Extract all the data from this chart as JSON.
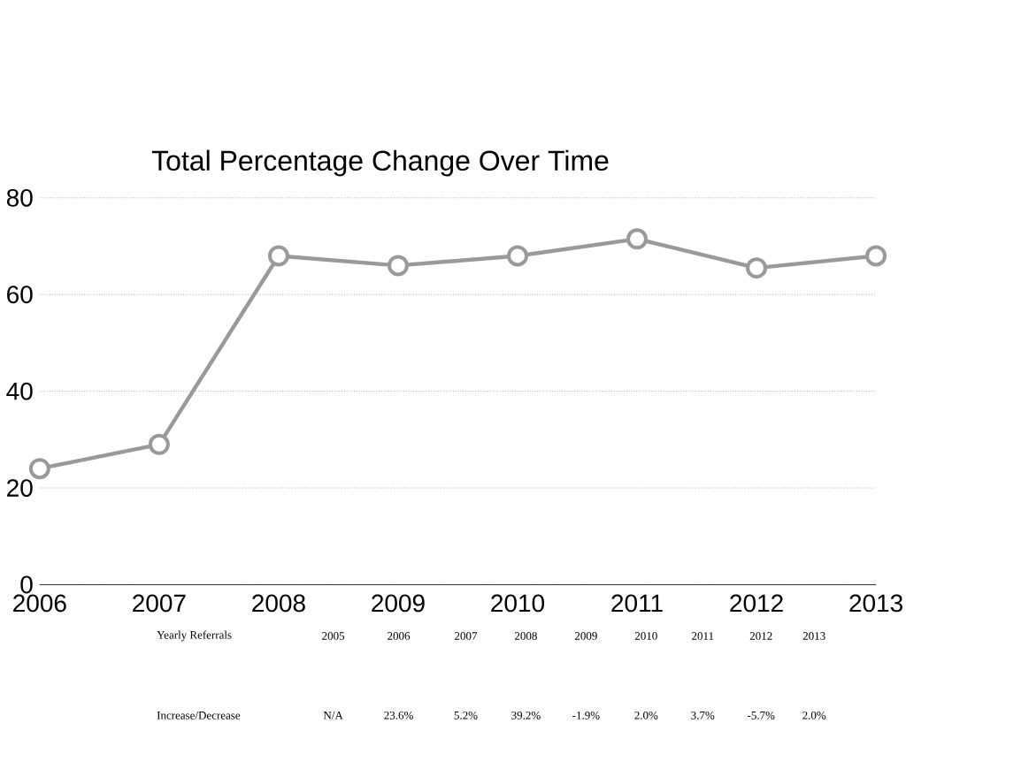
{
  "chart_data": {
    "type": "line",
    "title": "Total Percentage Change Over Time",
    "x": [
      2006,
      2007,
      2008,
      2009,
      2010,
      2011,
      2012,
      2013
    ],
    "series": [
      {
        "color": "#999999",
        "values": [
          24,
          29,
          68,
          66,
          68,
          71.5,
          65.5,
          68
        ]
      }
    ],
    "xlim": [
      2006,
      2013
    ],
    "xticks": [
      2006,
      2007,
      2008,
      2009,
      2010,
      2011,
      2012,
      2013
    ],
    "ylim": [
      0,
      80
    ],
    "yticks": [
      0,
      20,
      40,
      60,
      80
    ],
    "grid": "y",
    "marker": "circle",
    "line_style": "solid",
    "annotations": [
      "Yearly Referrals",
      "2005",
      "2006",
      "2007",
      "2008",
      "2009",
      "2010",
      "2011",
      "2012",
      "2013",
      "Increase/Decrease",
      "N/A",
      "23.6%",
      "5.2%",
      "39.2%",
      "-1.9%",
      "2.0%",
      "3.7%",
      "-5.7%",
      "2.0%"
    ]
  }
}
